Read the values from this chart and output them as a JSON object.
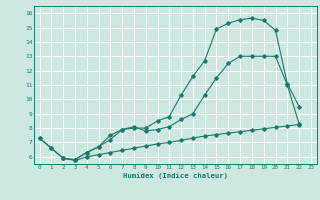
{
  "xlabel": "Humidex (Indice chaleur)",
  "bg_color": "#cce8e0",
  "grid_color": "#ffffff",
  "line_color": "#1a7a6e",
  "xlim": [
    -0.5,
    23.5
  ],
  "ylim": [
    5.5,
    16.5
  ],
  "xticks": [
    0,
    1,
    2,
    3,
    4,
    5,
    6,
    7,
    8,
    9,
    10,
    11,
    12,
    13,
    14,
    15,
    16,
    17,
    18,
    19,
    20,
    21,
    22,
    23
  ],
  "yticks": [
    6,
    7,
    8,
    9,
    10,
    11,
    12,
    13,
    14,
    15,
    16
  ],
  "line1_x": [
    0,
    1,
    2,
    3,
    4,
    5,
    6,
    7,
    8,
    9,
    10,
    11,
    12,
    13,
    14,
    15,
    16,
    17,
    18,
    19,
    20,
    21,
    22,
    23
  ],
  "line1_y": [
    7.3,
    6.6,
    5.9,
    5.8,
    6.3,
    6.7,
    7.2,
    7.9,
    8.0,
    8.0,
    8.5,
    8.8,
    10.3,
    11.6,
    12.7,
    14.9,
    15.3,
    15.55,
    15.65,
    15.5,
    14.8,
    11.1,
    9.5,
    null
  ],
  "line2_x": [
    0,
    1,
    2,
    3,
    4,
    5,
    6,
    7,
    8,
    9,
    10,
    11,
    12,
    13,
    14,
    15,
    16,
    17,
    18,
    19,
    20,
    21,
    22
  ],
  "line2_y": [
    7.3,
    6.6,
    5.9,
    5.8,
    6.3,
    6.7,
    7.5,
    7.9,
    8.1,
    7.8,
    7.9,
    8.1,
    8.6,
    9.0,
    10.3,
    11.5,
    12.5,
    13.0,
    13.0,
    13.0,
    13.0,
    11.0,
    8.3
  ],
  "line3_x": [
    2,
    3,
    4,
    5,
    6,
    7,
    8,
    9,
    10,
    11,
    12,
    13,
    14,
    15,
    16,
    17,
    18,
    19,
    20,
    21,
    22
  ],
  "line3_y": [
    5.9,
    5.75,
    6.0,
    6.15,
    6.3,
    6.45,
    6.6,
    6.75,
    6.9,
    7.0,
    7.15,
    7.3,
    7.45,
    7.55,
    7.65,
    7.75,
    7.85,
    7.95,
    8.05,
    8.15,
    8.25
  ]
}
